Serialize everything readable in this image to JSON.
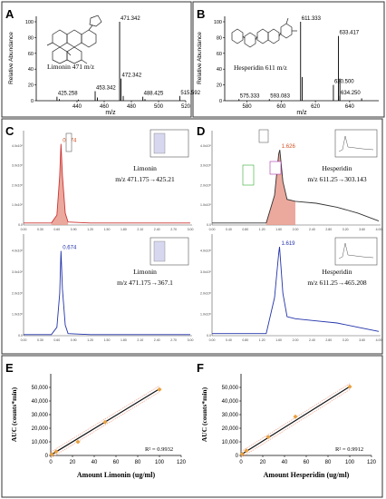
{
  "colors": {
    "msPeaks": "#000000",
    "mrmRed": "#cc3333",
    "mrmBlue": "#2233aa",
    "fillRed": "#e79a8c",
    "calibLine": "#111111",
    "calibBand": "#f0a08a",
    "calibPoint": "#e8a040",
    "boxBorder": "#444444"
  },
  "panels": {
    "A": {
      "letter": "A",
      "compound_label": "Limonin 471 m/z",
      "ylabel": "Relative Abundance",
      "xlabel": "m/z"
    },
    "B": {
      "letter": "B",
      "compound_label": "Hesperidin 611 m/z",
      "ylabel": "Relative Abundance",
      "xlabel": "m/z"
    },
    "C": {
      "letter": "C",
      "top": {
        "peak_label": "0.674",
        "compound": "Limonin",
        "transition": "m/z 471.175→425.21"
      },
      "bottom": {
        "peak_label": "0.674",
        "compound": "Limonin",
        "transition": "m/z 471.175→367.1"
      }
    },
    "D": {
      "letter": "D",
      "top": {
        "peak_label": "1.626",
        "compound": "Hesperidin",
        "transition": "m/z 611.25→303.143"
      },
      "bottom": {
        "peak_label": "1.619",
        "compound": "Hesperidin",
        "transition": "m/z 611.25→465.208"
      }
    },
    "E": {
      "letter": "E",
      "r2": "R² = 0.9932"
    },
    "F": {
      "letter": "F",
      "r2": "R² = 0.9912"
    }
  },
  "chart_data": [
    {
      "id": "A",
      "type": "bar",
      "xlabel": "m/z",
      "ylabel": "Relative Abundance",
      "xlim": [
        410,
        520
      ],
      "xticks": [
        440,
        460,
        480,
        500,
        520
      ],
      "ylim": [
        0,
        100
      ],
      "yticks": [
        0,
        20,
        40,
        60,
        80,
        100
      ],
      "peaks": [
        {
          "x": 425.258,
          "y": 5,
          "label": "425.258"
        },
        {
          "x": 427,
          "y": 2,
          "label": ""
        },
        {
          "x": 441,
          "y": 1.5,
          "label": ""
        },
        {
          "x": 453.342,
          "y": 12,
          "label": "453.342"
        },
        {
          "x": 455,
          "y": 4,
          "label": ""
        },
        {
          "x": 471.342,
          "y": 100,
          "label": "471.342"
        },
        {
          "x": 472.342,
          "y": 28,
          "label": "472.342"
        },
        {
          "x": 474,
          "y": 6,
          "label": ""
        },
        {
          "x": 488.425,
          "y": 5,
          "label": "488.425"
        },
        {
          "x": 490,
          "y": 2,
          "label": ""
        },
        {
          "x": 515.592,
          "y": 6,
          "label": "515.592"
        }
      ]
    },
    {
      "id": "B",
      "type": "bar",
      "xlabel": "m/z",
      "ylabel": "Relative Abundance",
      "xlim": [
        567,
        657
      ],
      "xticks": [
        580,
        600,
        620,
        640
      ],
      "ylim": [
        0,
        100
      ],
      "yticks": [
        0,
        20,
        40,
        60,
        80,
        100
      ],
      "peaks": [
        {
          "x": 575.333,
          "y": 2,
          "label": "575.333"
        },
        {
          "x": 593.083,
          "y": 2,
          "label": "593.083"
        },
        {
          "x": 611.333,
          "y": 100,
          "label": "611.333"
        },
        {
          "x": 612.3,
          "y": 30,
          "label": ""
        },
        {
          "x": 630.5,
          "y": 20,
          "label": "630.500"
        },
        {
          "x": 633.417,
          "y": 82,
          "label": "633.417"
        },
        {
          "x": 634.3,
          "y": 28,
          "label": ""
        },
        {
          "x": 634.25,
          "y": 6,
          "label": "634.250"
        },
        {
          "x": 647,
          "y": 3,
          "label": ""
        }
      ]
    },
    {
      "id": "C-top",
      "type": "line",
      "series": [
        {
          "name": "Limonin",
          "transition": "m/z 471.175→425.21",
          "peak_rt": 0.674,
          "x": [
            0,
            0.5,
            0.6,
            0.65,
            0.674,
            0.7,
            0.75,
            0.8,
            1.2,
            3.0
          ],
          "y": [
            0.1,
            0.1,
            0.5,
            2.5,
            4.1,
            2.5,
            0.6,
            0.15,
            0.1,
            0.1
          ]
        }
      ]
    },
    {
      "id": "C-bottom",
      "type": "line",
      "series": [
        {
          "name": "Limonin",
          "transition": "m/z 471.175→367.1",
          "peak_rt": 0.674,
          "x": [
            0,
            0.5,
            0.6,
            0.65,
            0.674,
            0.7,
            0.75,
            0.8,
            1.2,
            3.0
          ],
          "y": [
            0.05,
            0.05,
            0.4,
            2.0,
            4.0,
            2.2,
            0.5,
            0.1,
            0.05,
            0.05
          ]
        }
      ]
    },
    {
      "id": "D-top",
      "type": "line",
      "series": [
        {
          "name": "Hesperidin",
          "transition": "m/z 611.25→303.143",
          "peak_rt": 1.626,
          "x": [
            0,
            1.3,
            1.5,
            1.6,
            1.626,
            1.7,
            1.8,
            2.0,
            2.5,
            3.0,
            3.5,
            4.0
          ],
          "y": [
            0.1,
            0.1,
            1.5,
            3.6,
            3.8,
            2.2,
            1.3,
            1.2,
            1.1,
            0.9,
            0.6,
            0.2
          ]
        }
      ]
    },
    {
      "id": "D-bottom",
      "type": "line",
      "series": [
        {
          "name": "Hesperidin",
          "transition": "m/z 611.25→465.208",
          "peak_rt": 1.619,
          "x": [
            0,
            1.3,
            1.5,
            1.6,
            1.619,
            1.7,
            1.8,
            2.0,
            2.5,
            3.0,
            3.5,
            4.0
          ],
          "y": [
            0.1,
            0.1,
            1.8,
            3.9,
            4.2,
            2.0,
            0.9,
            0.8,
            0.7,
            0.6,
            0.4,
            0.2
          ]
        }
      ]
    },
    {
      "id": "E",
      "type": "scatter",
      "xlabel": "Amount Limonin (ug/ml)",
      "ylabel": "AUC (counts*min)",
      "xlim": [
        0,
        120
      ],
      "xticks": [
        0,
        20,
        40,
        60,
        80,
        100,
        120
      ],
      "ylim": [
        0,
        60000
      ],
      "yticks": [
        0,
        10000,
        20000,
        30000,
        40000,
        50000
      ],
      "ytick_labels": [
        "0",
        "10,000",
        "20,000",
        "30,000",
        "40,000",
        "50,000"
      ],
      "x": [
        1,
        5,
        25,
        50,
        100
      ],
      "y": [
        800,
        2800,
        10000,
        24500,
        48500
      ],
      "fit": {
        "slope": 486,
        "intercept": 300
      },
      "r2": "R² = 0.9932"
    },
    {
      "id": "F",
      "type": "scatter",
      "xlabel": "Amount Hesperidin (ug/ml)",
      "ylabel": "AUC (counts*min)",
      "xlim": [
        0,
        120
      ],
      "xticks": [
        0,
        20,
        40,
        60,
        80,
        100,
        120
      ],
      "ylim": [
        0,
        60000
      ],
      "yticks": [
        0,
        10000,
        20000,
        30000,
        40000,
        50000
      ],
      "ytick_labels": [
        "0",
        "10,000",
        "20,000",
        "30,000",
        "40,000",
        "50,000"
      ],
      "x": [
        1,
        5,
        25,
        50,
        100
      ],
      "y": [
        1000,
        3500,
        13500,
        28500,
        50500
      ],
      "fit": {
        "slope": 500,
        "intercept": 600
      },
      "r2": "R² = 0.9912"
    }
  ]
}
